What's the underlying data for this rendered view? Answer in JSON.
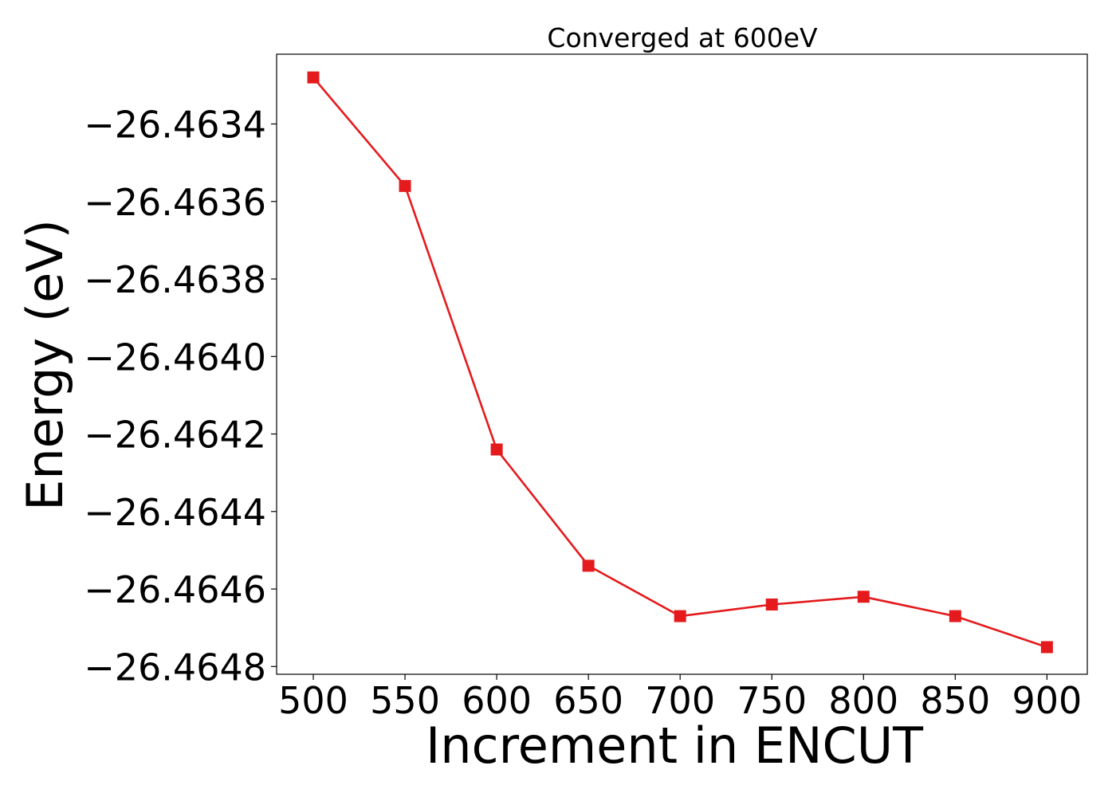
{
  "chart_data": {
    "type": "line",
    "title": "Converged at 600eV",
    "xlabel": "Increment in ENCUT",
    "ylabel": "Energy (eV)",
    "x": [
      500,
      550,
      600,
      650,
      700,
      750,
      800,
      850,
      900
    ],
    "series": [
      {
        "values": [
          -26.46328,
          -26.46356,
          -26.46424,
          -26.46454,
          -26.46467,
          -26.46464,
          -26.46462,
          -26.46467,
          -26.46475
        ],
        "color": "#e41a1c",
        "marker": "square"
      }
    ],
    "xticks": [
      500,
      550,
      600,
      650,
      700,
      750,
      800,
      850,
      900
    ],
    "xtick_labels": [
      "500",
      "550",
      "600",
      "650",
      "700",
      "750",
      "800",
      "850",
      "900"
    ],
    "yticks": [
      -26.4634,
      -26.4636,
      -26.4638,
      -26.464,
      -26.4642,
      -26.4644,
      -26.4646,
      -26.4648
    ],
    "ytick_labels": [
      "−26.4634",
      "−26.4636",
      "−26.4638",
      "−26.4640",
      "−26.4642",
      "−26.4644",
      "−26.4646",
      "−26.4648"
    ],
    "xlim": [
      480,
      922
    ],
    "ylim": [
      -26.46482,
      -26.46322
    ],
    "grid": false,
    "legend": "none"
  }
}
